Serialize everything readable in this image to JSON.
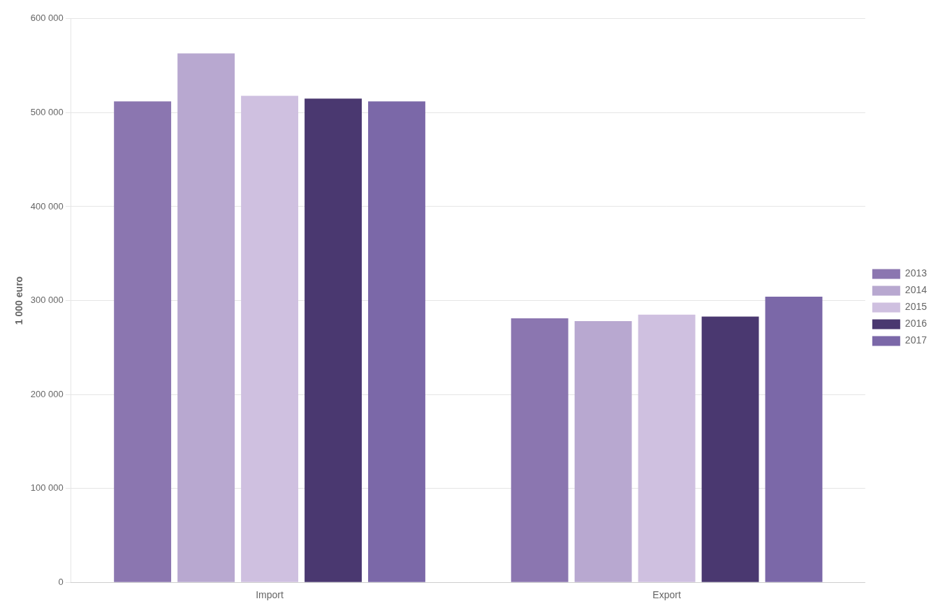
{
  "chart_data": {
    "type": "bar",
    "categories": [
      "Import",
      "Export"
    ],
    "series": [
      {
        "name": "2013",
        "color": "#8B76B0",
        "values": [
          512000,
          281000
        ]
      },
      {
        "name": "2014",
        "color": "#B8A8D0",
        "values": [
          563000,
          278000
        ]
      },
      {
        "name": "2015",
        "color": "#CFC0E0",
        "values": [
          518000,
          285000
        ]
      },
      {
        "name": "2016",
        "color": "#4A3870",
        "values": [
          515000,
          283000
        ]
      },
      {
        "name": "2017",
        "color": "#7B68A8",
        "values": [
          512000,
          304000
        ]
      }
    ],
    "ylabel": "1 000 euro",
    "ylim": [
      0,
      600000
    ],
    "yticks": [
      0,
      {
        "value": 100000,
        "label": "100 000"
      },
      {
        "value": 200000,
        "label": "200 000"
      },
      {
        "value": 300000,
        "label": "300 000"
      },
      {
        "value": 400000,
        "label": "400 000"
      },
      {
        "value": 500000,
        "label": "500 000"
      },
      {
        "value": 600000,
        "label": "600 000"
      }
    ],
    "grid": "y",
    "legend": "right"
  }
}
